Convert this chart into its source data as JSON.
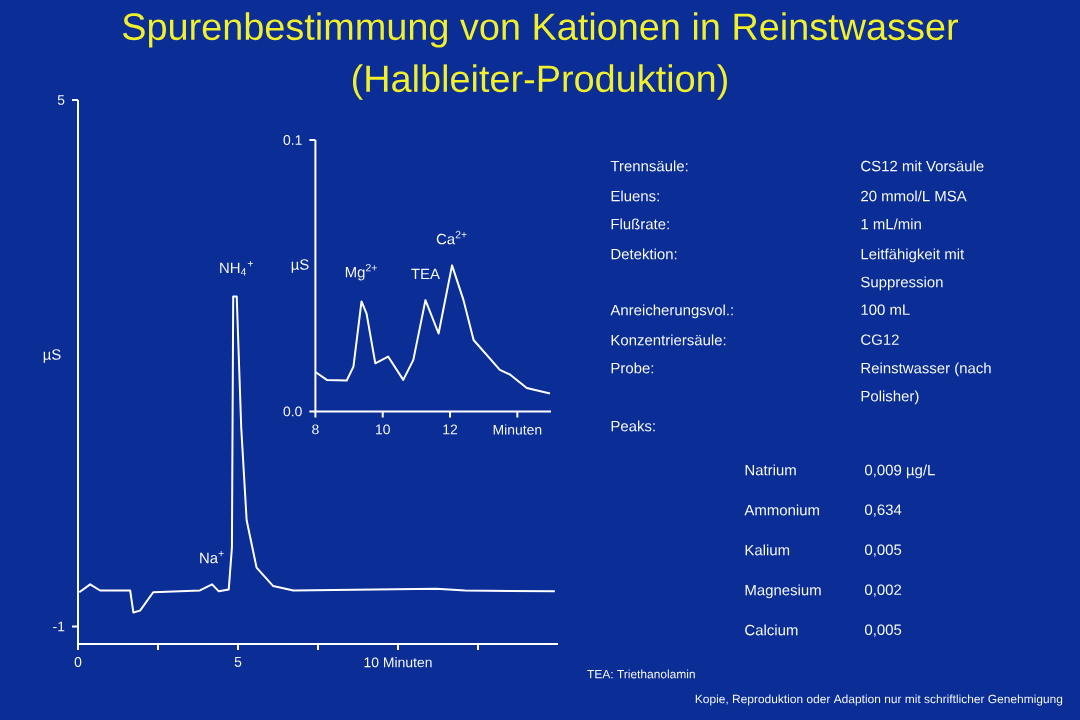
{
  "chart_data": [
    {
      "type": "line",
      "title": "Spurenbestimmung von Kationen in Reinstwasser",
      "subtitle": "(Halbleiter-Produktion)",
      "ylabel": "µS",
      "color": "#ffffff",
      "x": [
        0.04,
        0.38,
        0.69,
        1.63,
        1.73,
        1.94,
        2.35,
        3.81,
        4.19,
        4.4,
        4.71,
        4.81,
        4.85,
        4.96,
        5.1,
        5.27,
        5.58,
        6.1,
        6.73,
        11.2,
        12.1,
        14.9
      ],
      "values": [
        -0.61,
        -0.52,
        -0.59,
        -0.59,
        -0.84,
        -0.82,
        -0.61,
        -0.59,
        -0.52,
        -0.6,
        -0.58,
        -0.1,
        2.76,
        2.76,
        1.27,
        0.21,
        -0.33,
        -0.54,
        -0.59,
        -0.57,
        -0.59,
        -0.6
      ],
      "xlim": [
        0,
        15
      ],
      "ylim": [
        -1.2,
        5
      ],
      "xticks": [
        0,
        {
          "value": 2.5,
          "label": null
        },
        5,
        {
          "value": 7.5,
          "label": null
        },
        {
          "value": 10,
          "label": "10 Minuten"
        },
        {
          "value": 12.5,
          "label": null
        }
      ],
      "yticks": [
        -1,
        5
      ],
      "annotations": [
        {
          "text": "NH$_{4}$$^{+}$",
          "x": 4.96,
          "y": 2.76
        },
        {
          "text": "Na$^{+}$",
          "x": 4.19,
          "y": -0.52
        },
        "Kopie, Reproduktion oder Adaption nur mit schriftlicher Genehmigung"
      ]
    },
    {
      "type": "line",
      "ylabel": "µS",
      "color": "#ffffff",
      "x": [
        8,
        8.34,
        8.93,
        9.13,
        9.37,
        9.52,
        9.78,
        10.16,
        10.61,
        10.91,
        11.27,
        11.66,
        12.06,
        12.4,
        12.7,
        13.48,
        13.78,
        14.28,
        14.97
      ],
      "values": [
        0.0145,
        0.0116,
        0.0114,
        0.0165,
        0.0405,
        0.036,
        0.0177,
        0.0202,
        0.0116,
        0.019,
        0.041,
        0.0287,
        0.0538,
        0.041,
        0.0263,
        0.0153,
        0.0136,
        0.0086,
        0.0066
      ],
      "xlim": [
        8,
        15
      ],
      "ylim": [
        0,
        0.1
      ],
      "xticks": [
        8,
        10,
        12,
        {
          "value": 14,
          "label": "Minuten"
        }
      ],
      "yticks": [
        {
          "value": 0,
          "label": "0.0"
        },
        0.1
      ],
      "annotations": [
        {
          "text": "Mg$^{2+}$",
          "x": 9.37,
          "y": 0.0405
        },
        {
          "text": "TEA",
          "x": 11.27,
          "y": 0.041
        },
        {
          "text": "Ca$^{2+}$",
          "x": 12.06,
          "y": 0.0538
        },
        "TEA: Triethanolamin"
      ]
    },
    {
      "type": "other",
      "annotations": [
        "Trennsäule:",
        "CS12 mit Vorsäule",
        "Eluens:",
        "20 mmol/L MSA",
        "Flußrate:",
        "1 mL/min",
        "Detektion:",
        "Leitfähigkeit mit Suppression",
        "Anreicherungsvol.:",
        "100 mL",
        "Konzentriersäule:",
        "CG12",
        "Probe:",
        "Reinstwasser (nach Polisher)",
        "Peaks:",
        "Natrium",
        "0,009  µg/L",
        "Ammonium",
        "0,634",
        "Kalium",
        "0,005",
        "Magnesium",
        "0,002",
        "Calcium",
        "0,005"
      ]
    }
  ]
}
